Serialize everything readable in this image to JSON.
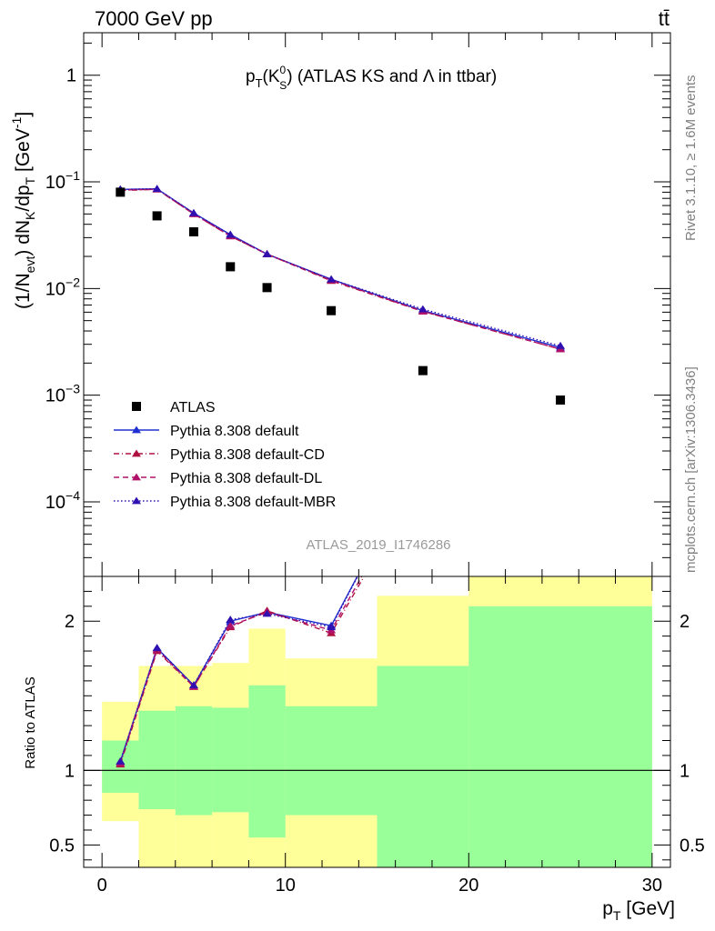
{
  "header": {
    "left": "7000 GeV pp",
    "right": "tt̄"
  },
  "side_labels": {
    "rivet": "Rivet 3.1.10, ≥ 1.6M events",
    "mcplots": "mcplots.cern.ch [arXiv:1306.3436]"
  },
  "colors": {
    "data": "#000000",
    "default": "#2030d0",
    "cd": "#b01040",
    "dl": "#b0106a",
    "mbr": "#3010b0",
    "band_stat": "#99ff99",
    "band_total": "#ffff99"
  },
  "chart_data": [
    {
      "type": "line",
      "title": "p_T(K^0_S) (ATLAS KS and Λ in ttbar)",
      "title_parts": {
        "main": "p",
        "sub1": "T",
        "paren_open": "(K",
        "sup": "0",
        "sub2": "S",
        "rest": ") (ATLAS KS and Λ in ttbar)"
      },
      "ylabel": "(1/N_evt) dN_K/dp_T [GeV^-1]",
      "ylabel_parts": {
        "a": "(1/N",
        "sub1": "evt",
        "b": ") dN",
        "sub2": "K",
        "c": "/dp",
        "sub3": "T",
        "d": " [GeV",
        "sup": "-1",
        "e": "]"
      },
      "yscale": "log",
      "ylim": [
        2e-05,
        2.5
      ],
      "xlim": [
        -1,
        31
      ],
      "y_ticks": [
        {
          "value": 1,
          "base": "1",
          "exp": ""
        },
        {
          "value": 0.1,
          "base": "10",
          "exp": "−1"
        },
        {
          "value": 0.01,
          "base": "10",
          "exp": "−2"
        },
        {
          "value": 0.001,
          "base": "10",
          "exp": "−3"
        },
        {
          "value": 0.0001,
          "base": "10",
          "exp": "−4"
        }
      ],
      "watermark": "ATLAS_2019_I1746286",
      "legend_position": "center-left",
      "data": {
        "name": "ATLAS",
        "x": [
          1,
          3,
          5,
          7,
          9,
          12.5,
          17.5,
          25
        ],
        "y": [
          0.08,
          0.048,
          0.034,
          0.016,
          0.0102,
          0.0062,
          0.0017,
          0.0009
        ]
      },
      "series": [
        {
          "name": "Pythia 8.308 default",
          "style": "solid",
          "x": [
            1,
            3,
            5,
            7,
            9,
            12.5,
            17.5,
            25
          ],
          "y": [
            0.085,
            0.086,
            0.051,
            0.032,
            0.021,
            0.0122,
            0.0062,
            0.0028
          ]
        },
        {
          "name": "Pythia 8.308 default-CD",
          "style": "dashdot",
          "x": [
            1,
            3,
            5,
            7,
            9,
            12.5,
            17.5,
            25
          ],
          "y": [
            0.083,
            0.085,
            0.05,
            0.031,
            0.021,
            0.0118,
            0.0061,
            0.0027
          ]
        },
        {
          "name": "Pythia 8.308 default-DL",
          "style": "dashed",
          "x": [
            1,
            3,
            5,
            7,
            9,
            12.5,
            17.5,
            25
          ],
          "y": [
            0.084,
            0.085,
            0.05,
            0.031,
            0.021,
            0.012,
            0.0061,
            0.0027
          ]
        },
        {
          "name": "Pythia 8.308 default-MBR",
          "style": "dotted",
          "x": [
            1,
            3,
            5,
            7,
            9,
            12.5,
            17.5,
            25
          ],
          "y": [
            0.085,
            0.086,
            0.051,
            0.032,
            0.021,
            0.0122,
            0.0064,
            0.0029
          ]
        }
      ]
    },
    {
      "type": "line",
      "ylabel": "Ratio to ATLAS",
      "xlabel": "p_T [GeV]",
      "xlabel_parts": {
        "main": "p",
        "sub": "T",
        "rest": " [GeV]"
      },
      "xlim": [
        -1,
        31
      ],
      "ylim": [
        0.35,
        2.3
      ],
      "x_ticks": [
        0,
        10,
        20,
        30
      ],
      "y_ticks": [
        {
          "value": 0.5,
          "label": "0.5"
        },
        {
          "value": 1,
          "label": "1"
        },
        {
          "value": 2,
          "label": "2"
        }
      ],
      "bands": [
        {
          "xlow": 0,
          "xhigh": 2,
          "stat": [
            0.85,
            1.2
          ],
          "total": [
            0.66,
            1.46
          ]
        },
        {
          "xlow": 2,
          "xhigh": 4,
          "stat": [
            0.74,
            1.4
          ],
          "total": [
            0.35,
            1.7
          ]
        },
        {
          "xlow": 4,
          "xhigh": 6,
          "stat": [
            0.7,
            1.43
          ],
          "total": [
            0.35,
            1.7
          ]
        },
        {
          "xlow": 6,
          "xhigh": 8,
          "stat": [
            0.72,
            1.42
          ],
          "total": [
            0.35,
            1.72
          ]
        },
        {
          "xlow": 8,
          "xhigh": 10,
          "stat": [
            0.55,
            1.57
          ],
          "total": [
            0.35,
            1.95
          ]
        },
        {
          "xlow": 10,
          "xhigh": 15,
          "stat": [
            0.7,
            1.43
          ],
          "total": [
            0.35,
            1.75
          ]
        },
        {
          "xlow": 15,
          "xhigh": 20,
          "stat": [
            0.35,
            1.7
          ],
          "total": [
            0.35,
            2.17
          ]
        },
        {
          "xlow": 20,
          "xhigh": 30,
          "stat": [
            0.35,
            2.1
          ],
          "total": [
            0.35,
            2.3
          ]
        }
      ],
      "reference_line": 1,
      "series": [
        {
          "name": "Pythia 8.308 default",
          "style": "solid",
          "x": [
            1,
            3,
            5,
            7,
            9,
            12.5,
            15
          ],
          "y": [
            1.06,
            1.82,
            1.57,
            2.0,
            2.06,
            1.97,
            2.55
          ]
        },
        {
          "name": "Pythia 8.308 default-CD",
          "style": "dashdot",
          "x": [
            1,
            3,
            5,
            7,
            9,
            12.5,
            15
          ],
          "y": [
            1.04,
            1.8,
            1.56,
            1.96,
            2.07,
            1.92,
            2.45
          ]
        },
        {
          "name": "Pythia 8.308 default-DL",
          "style": "dashed",
          "x": [
            1,
            3,
            5,
            7,
            9,
            12.5,
            15
          ],
          "y": [
            1.05,
            1.81,
            1.56,
            1.97,
            2.06,
            1.94,
            2.48
          ]
        },
        {
          "name": "Pythia 8.308 default-MBR",
          "style": "dotted",
          "x": [
            1,
            3,
            5,
            7,
            9,
            12.5,
            15
          ],
          "y": [
            1.06,
            1.82,
            1.57,
            2.01,
            2.05,
            1.96,
            2.55
          ]
        }
      ]
    }
  ]
}
